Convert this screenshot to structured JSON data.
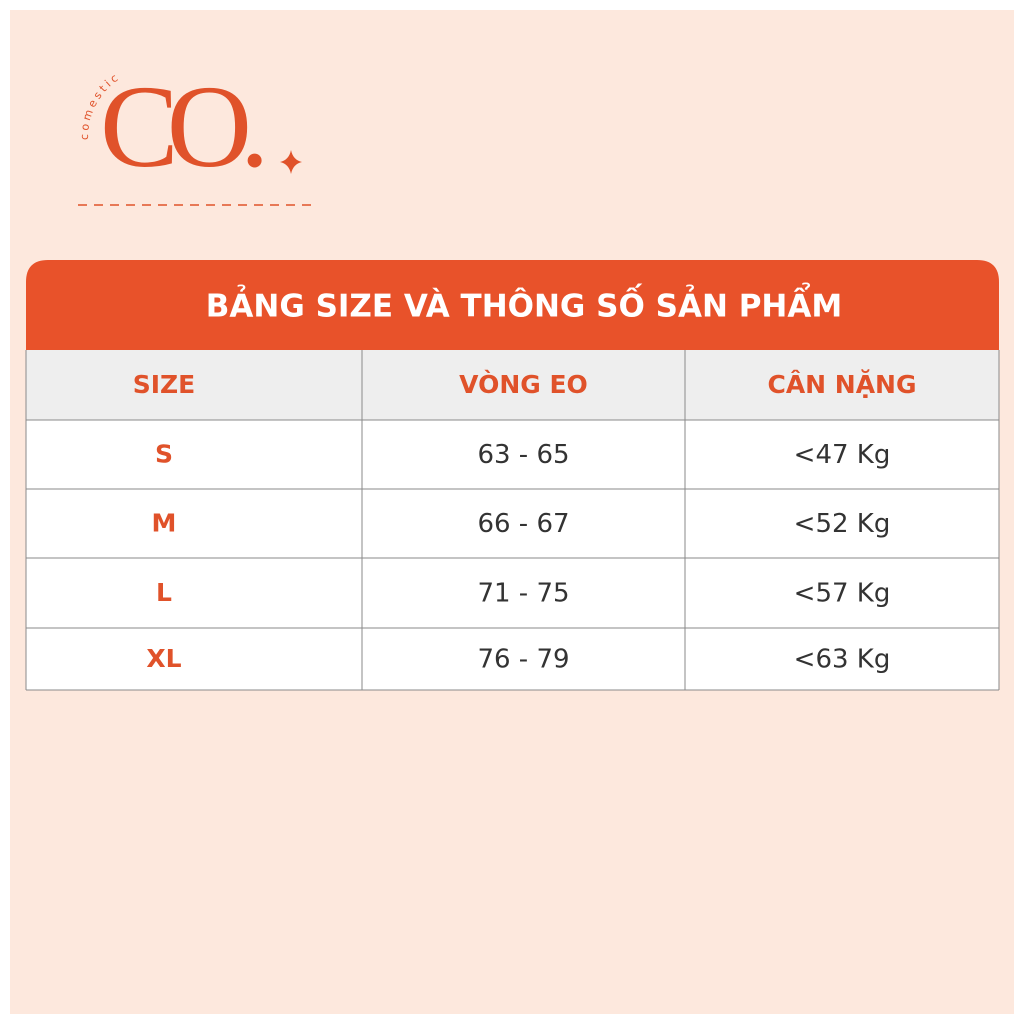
{
  "logo": {
    "tagline": "comestic",
    "mark": "CO."
  },
  "table": {
    "title": "BẢNG SIZE VÀ THÔNG SỐ SẢN PHẨM",
    "header": [
      "SIZE",
      "VÒNG EO",
      "CÂN NẶNG"
    ],
    "rows": [
      [
        "S",
        "63 - 65",
        "<47 Kg"
      ],
      [
        "M",
        "66 - 67",
        "<52 Kg"
      ],
      [
        "L",
        "71 - 75",
        "<57 Kg"
      ],
      [
        "XL",
        "76 - 79",
        "<63 Kg"
      ]
    ]
  }
}
